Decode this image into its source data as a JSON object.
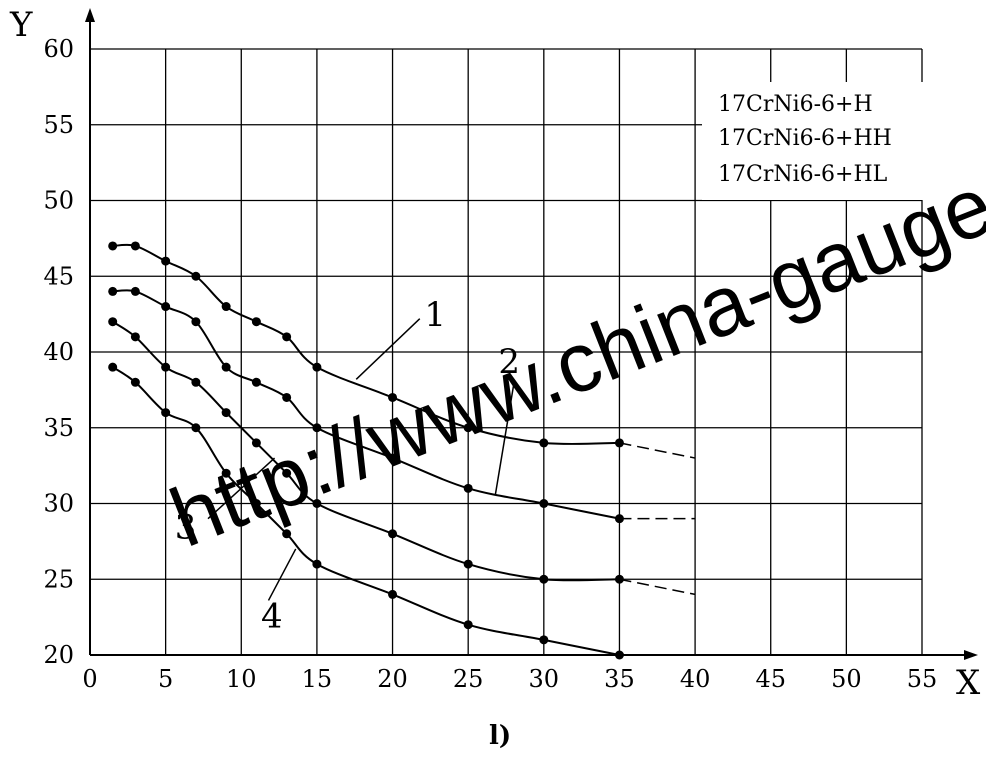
{
  "chart_data": {
    "type": "line",
    "xlabel": "X",
    "ylabel": "Y",
    "xlim": [
      0,
      55
    ],
    "ylim": [
      20,
      60
    ],
    "xticks": [
      0,
      5,
      10,
      15,
      20,
      25,
      30,
      35,
      40,
      45,
      50,
      55
    ],
    "yticks": [
      20,
      25,
      30,
      35,
      40,
      45,
      50,
      55,
      60
    ],
    "grid": true,
    "legend": [
      "17CrNi6-6+H",
      "17CrNi6-6+HH",
      "17CrNi6-6+HL"
    ],
    "sublabel": "l)",
    "watermark": "http://www.china-gauges.co",
    "series": [
      {
        "name": "1",
        "x": [
          1.5,
          3,
          5,
          7,
          9,
          11,
          13,
          15,
          20,
          25,
          30,
          35
        ],
        "y": [
          47,
          47,
          46,
          45,
          43,
          42,
          41,
          39,
          37,
          35,
          34,
          34
        ],
        "extrapolate_to": [
          40,
          33
        ]
      },
      {
        "name": "2",
        "x": [
          1.5,
          3,
          5,
          7,
          9,
          11,
          13,
          15,
          20,
          25,
          30,
          35
        ],
        "y": [
          44,
          44,
          43,
          42,
          39,
          38,
          37,
          35,
          33,
          31,
          30,
          29
        ],
        "extrapolate_to": [
          40,
          29
        ]
      },
      {
        "name": "3",
        "x": [
          1.5,
          3,
          5,
          7,
          9,
          11,
          13,
          15,
          20,
          25,
          30,
          35
        ],
        "y": [
          42,
          41,
          39,
          38,
          36,
          34,
          32,
          30,
          28,
          26,
          25,
          25
        ],
        "extrapolate_to": [
          40,
          24
        ]
      },
      {
        "name": "4",
        "x": [
          1.5,
          3,
          5,
          7,
          9,
          11,
          13,
          15,
          20,
          25,
          30,
          35
        ],
        "y": [
          39,
          38,
          36,
          35,
          32,
          30,
          28,
          26,
          24,
          22,
          21,
          20
        ],
        "extrapolate_to": null
      }
    ]
  }
}
